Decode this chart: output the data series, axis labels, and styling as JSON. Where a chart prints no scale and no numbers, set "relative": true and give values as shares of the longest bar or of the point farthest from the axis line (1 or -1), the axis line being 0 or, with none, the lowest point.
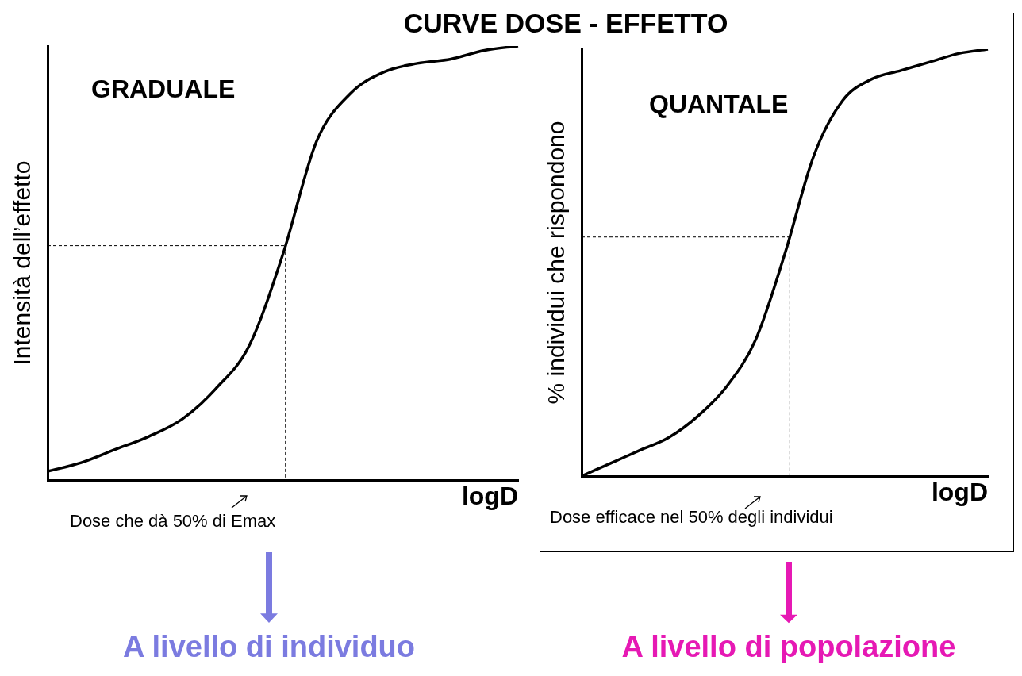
{
  "chart_data": [
    {
      "type": "line",
      "title": "CURVE DOSE - EFFETTO",
      "subtitle": "GRADUALE",
      "xlabel": "logD",
      "ylabel": "Intensità dell’effetto",
      "relative": true,
      "categories": [
        null,
        null,
        null,
        null,
        null,
        null,
        null,
        null,
        null,
        null,
        null,
        null,
        null,
        null,
        null
      ],
      "series": [
        {
          "color": "#000000",
          "values": [
            0.02,
            0.04,
            0.07,
            0.1,
            0.14,
            0.21,
            0.31,
            0.52,
            0.78,
            0.89,
            0.94,
            0.96,
            0.97,
            0.99,
            1
          ]
        }
      ],
      "ref_lines": [
        {
          "axis": "y",
          "value": 0.54,
          "line_style": "dashed"
        }
      ],
      "annotations": [
        "Dose che dà 50% di Emax",
        "A livello di individuo"
      ]
    },
    {
      "type": "line",
      "subtitle": "QUANTALE",
      "xlabel": "logD",
      "ylabel": "% individui che rispondono",
      "relative": true,
      "categories": [
        null,
        null,
        null,
        null,
        null,
        null,
        null,
        null,
        null,
        null,
        null,
        null,
        null,
        null,
        null
      ],
      "series": [
        {
          "color": "#000000",
          "values": [
            0.0,
            0.03,
            0.06,
            0.09,
            0.14,
            0.21,
            0.32,
            0.52,
            0.75,
            0.88,
            0.93,
            0.95,
            0.97,
            0.99,
            1
          ]
        }
      ],
      "ref_lines": [
        {
          "axis": "y",
          "value": 0.56,
          "line_style": "dashed"
        }
      ],
      "annotations": [
        "Dose efficace nel 50% degli individui",
        "A livello di popolazione"
      ]
    }
  ]
}
